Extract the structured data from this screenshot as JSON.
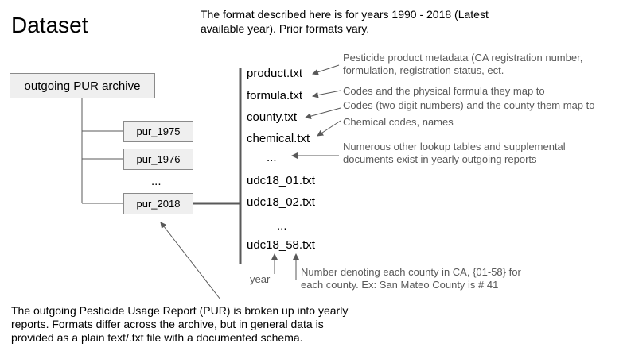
{
  "title": "Dataset",
  "format_note": [
    "The format described here is for years 1990 - 2018 (Latest",
    "available year). Prior formats vary."
  ],
  "archive": {
    "root_label": "outgoing PUR archive",
    "years": [
      "pur_1975",
      "pur_1976",
      "pur_2018"
    ],
    "ellipsis": "..."
  },
  "files": {
    "product": "product.txt",
    "formula": "formula.txt",
    "county": "county.txt",
    "chemical": "chemical.txt",
    "ellipsis_1": "...",
    "udc_01": "udc18_01.txt",
    "udc_02": "udc18_02.txt",
    "ellipsis_2": "...",
    "udc_58": "udc18_58.txt"
  },
  "annotations": {
    "product": [
      "Pesticide product metadata (CA registration number,",
      "formulation, registration status, ect."
    ],
    "formula": "Codes and the physical formula they map to",
    "county": "Codes (two digit numbers) and the county them map to",
    "chemical": "Chemical codes, names",
    "other": [
      "Numerous other lookup tables and supplemental",
      "documents exist in yearly outgoing reports"
    ],
    "year": "year",
    "county_number": [
      "Number denoting each county in CA,  {01-58} for",
      "each county. Ex: San Mateo County is # 41"
    ]
  },
  "bottom_note": [
    "The outgoing Pesticide Usage Report (PUR) is broken up into yearly",
    "reports. Formats differ across the archive, but in general data is",
    "provided as a plain text/.txt file with a documented schema."
  ],
  "colors": {
    "box_fill": "#efefef",
    "box_border": "#8a8a8a",
    "annotation_text": "#595959",
    "line": "#595959"
  }
}
